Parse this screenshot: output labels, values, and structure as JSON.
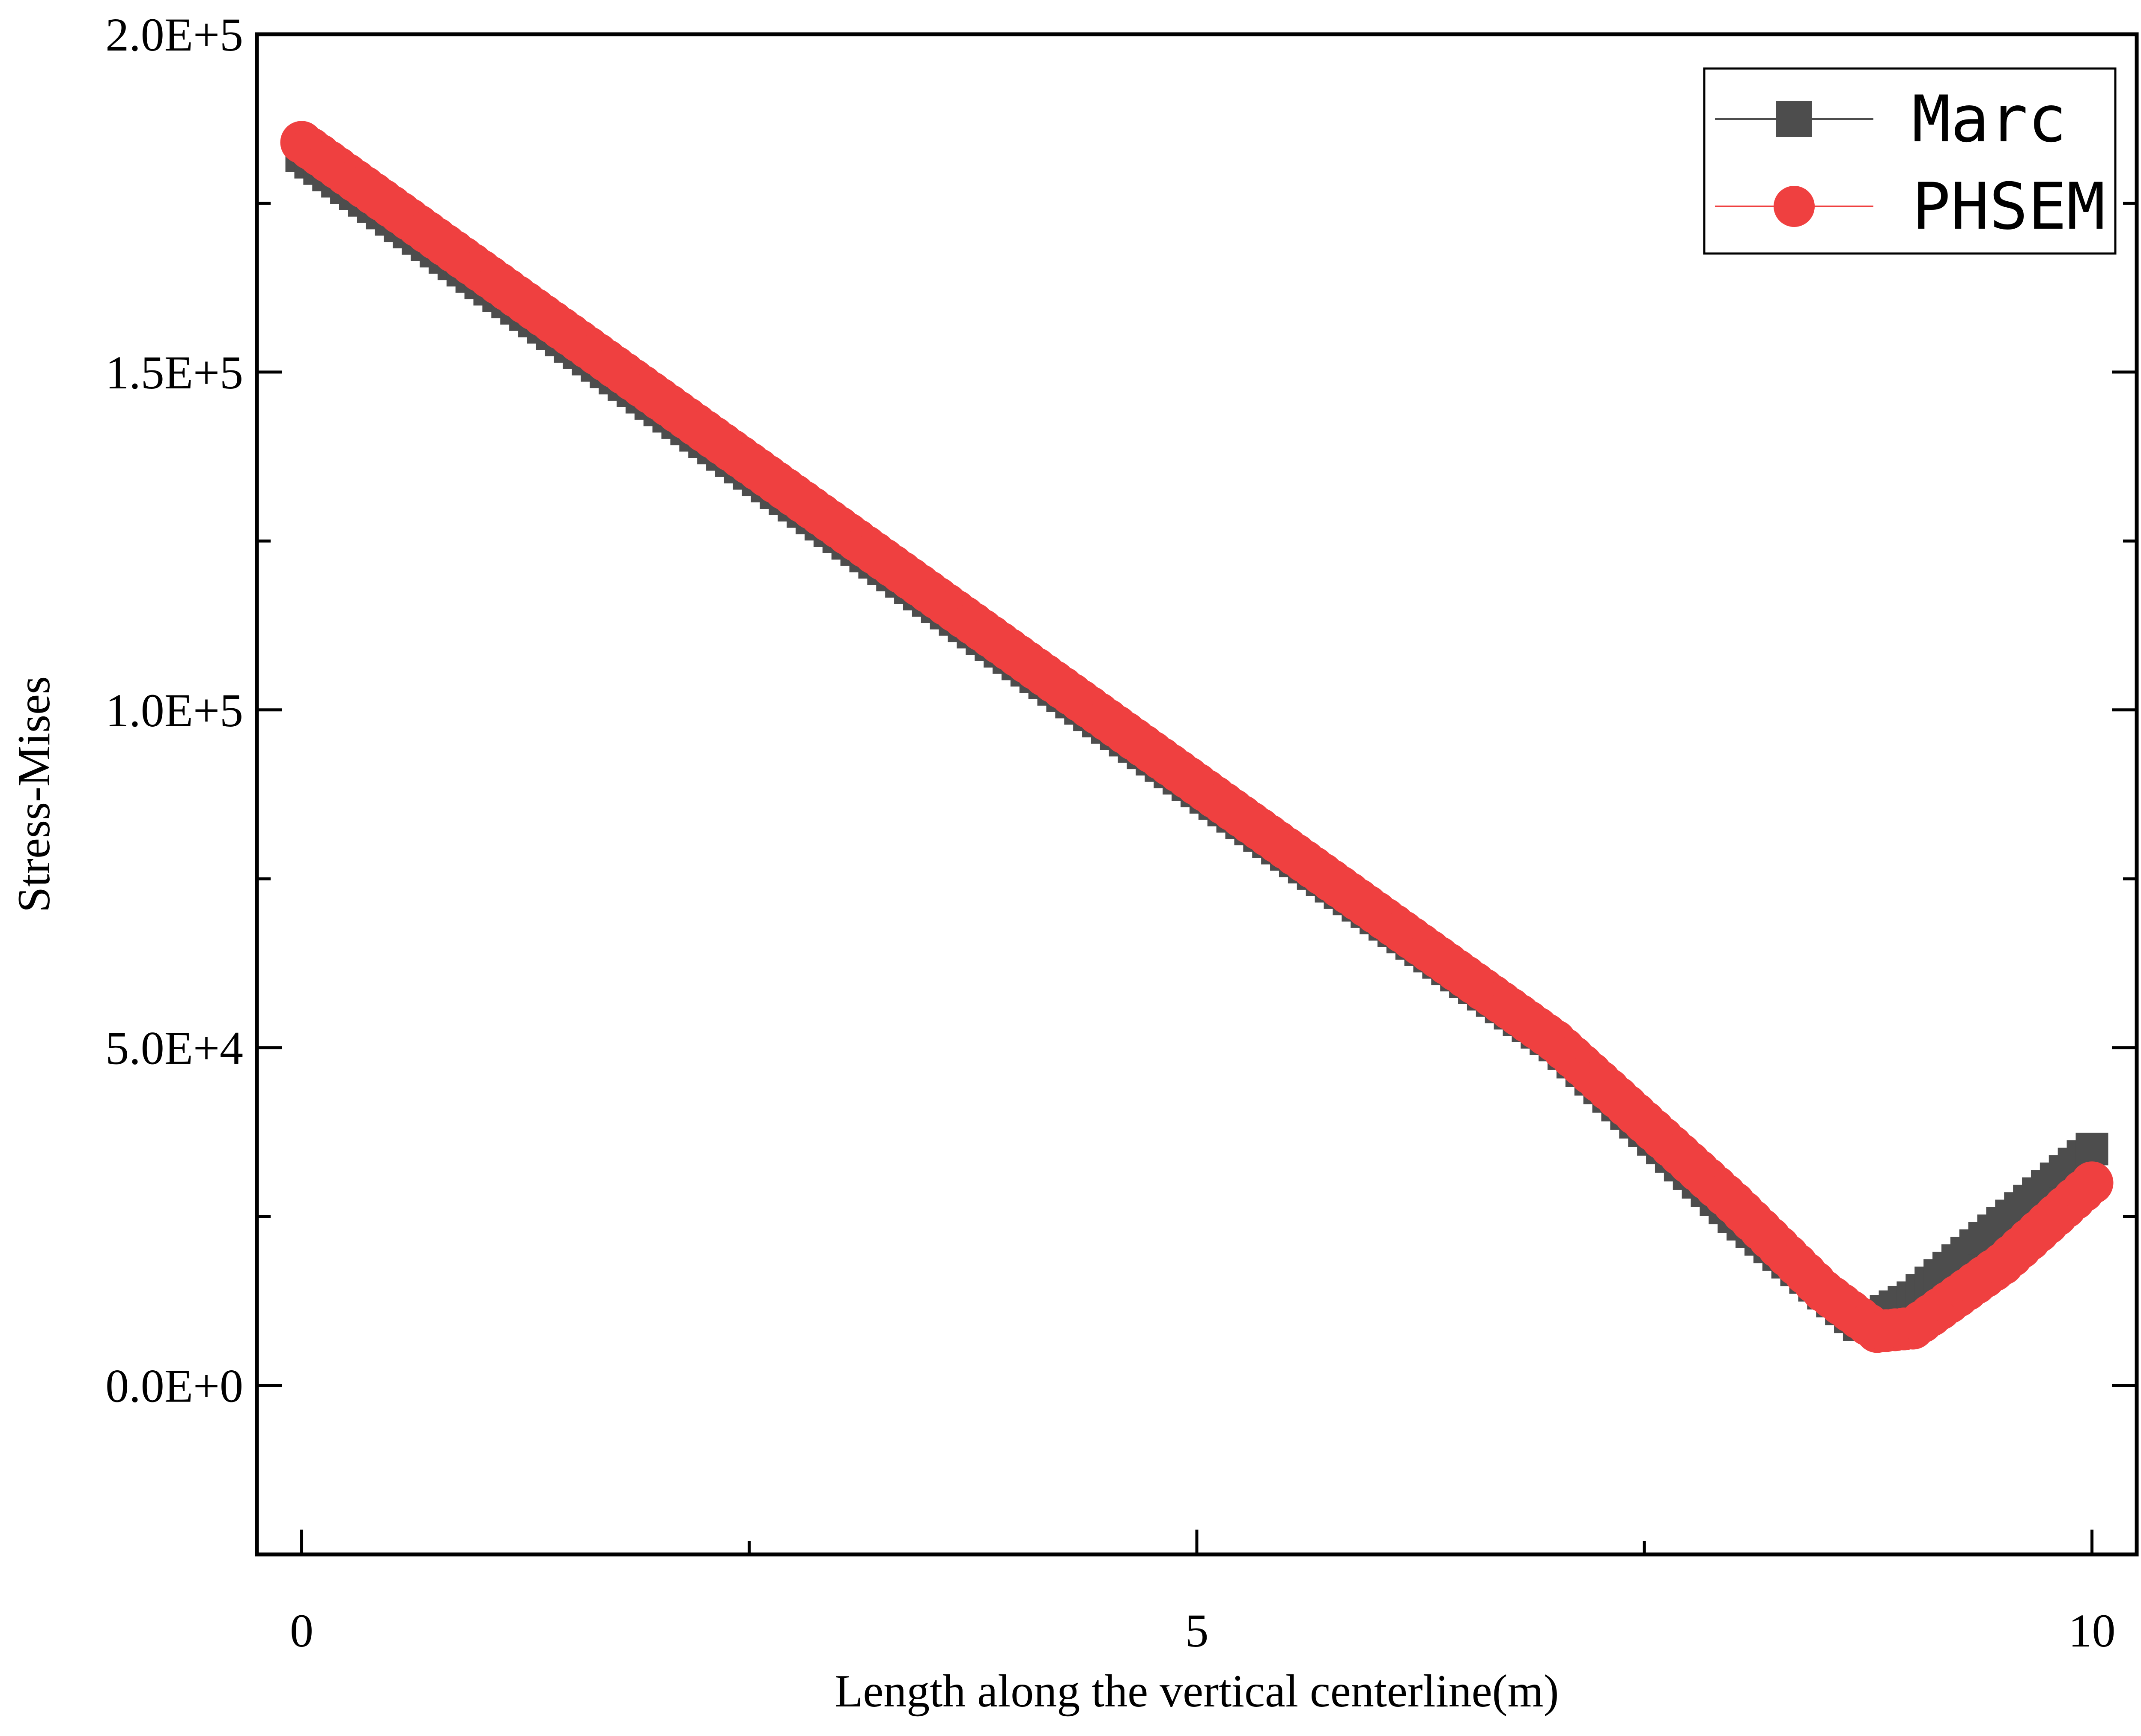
{
  "chart_data": {
    "type": "line",
    "xlabel": "Length along the vertical centerline(m)",
    "ylabel": "Stress-Mises",
    "xlim": [
      -0.25,
      10.25
    ],
    "ylim": [
      -25000,
      200000
    ],
    "x_ticks": [
      0,
      5,
      10
    ],
    "x_tick_labels": [
      "0",
      "5",
      "10"
    ],
    "x_minor_ticks": [
      2.5,
      7.5
    ],
    "y_ticks": [
      0,
      50000,
      100000,
      150000,
      200000
    ],
    "y_tick_labels": [
      "0.0E+0",
      "5.0E+4",
      "1.0E+5",
      "1.5E+5",
      "2.0E+5"
    ],
    "y_minor_ticks": [
      25000,
      75000,
      125000,
      175000
    ],
    "grid": false,
    "legend_position": "top-right",
    "series": [
      {
        "name": "Marc",
        "marker": "square",
        "color": "#4d4d4d",
        "points": [
          [
            0,
            182000
          ],
          [
            1,
            163200
          ],
          [
            2,
            144400
          ],
          [
            3,
            125600
          ],
          [
            4,
            106800
          ],
          [
            5,
            88000
          ],
          [
            6,
            69200
          ],
          [
            7,
            50400
          ],
          [
            8,
            25000
          ],
          [
            8.4,
            16000
          ],
          [
            8.7,
            9000
          ],
          [
            9.0,
            13000
          ],
          [
            9.5,
            24000
          ],
          [
            10,
            35000
          ]
        ]
      },
      {
        "name": "PHSEM",
        "marker": "circle",
        "color": "#ef4040",
        "points": [
          [
            0,
            184000
          ],
          [
            1,
            165000
          ],
          [
            2,
            146000
          ],
          [
            3,
            127000
          ],
          [
            4,
            108000
          ],
          [
            5,
            89000
          ],
          [
            6,
            70000
          ],
          [
            7,
            51000
          ],
          [
            8,
            27000
          ],
          [
            8.5,
            14000
          ],
          [
            8.8,
            8000
          ],
          [
            9.0,
            8500
          ],
          [
            9.5,
            18000
          ],
          [
            10,
            30000
          ]
        ]
      }
    ]
  }
}
